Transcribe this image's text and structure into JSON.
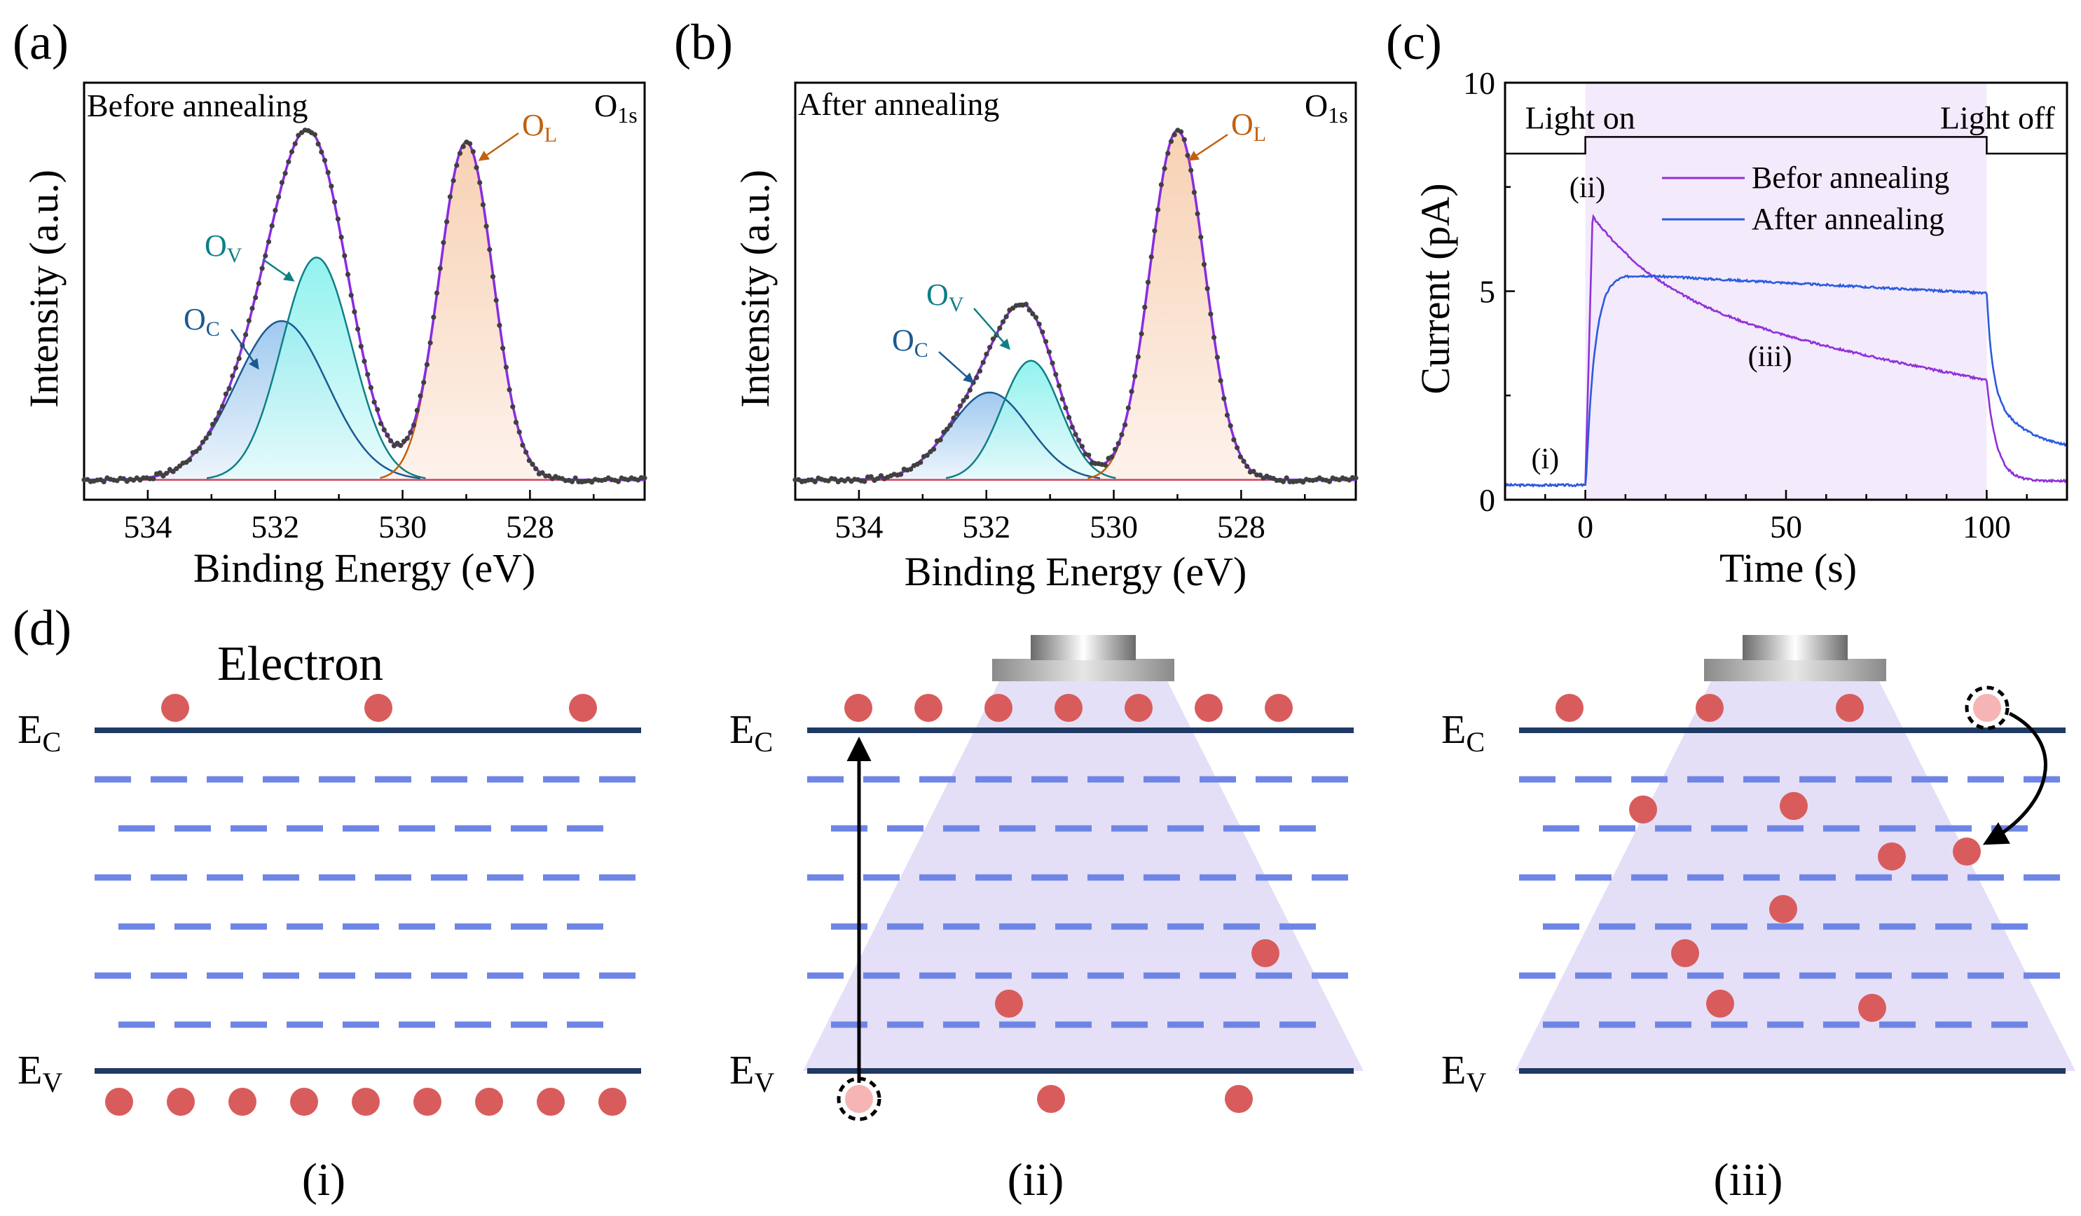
{
  "colors": {
    "envelope": "#8a2be2",
    "ol_fill": "#f7dcc8",
    "ol_line": "#c06010",
    "ov_fill": "#bff3f2",
    "ov_line": "#0e7f86",
    "oc_fill": "#bcd8f0",
    "oc_line": "#1a5a90",
    "baseline": "#d04060",
    "data_points": "#404040",
    "series_before": "#9030d8",
    "series_after": "#2a5ae0",
    "light_shade": "#f3eafc",
    "band_solid": "#1f3a63",
    "band_trap": "#6f85e6",
    "electron": "#d95c5c",
    "hole": "#f6b4b4",
    "cone": "#d8d0f0",
    "lamp": "#9a9a9a"
  },
  "panels": {
    "a": {
      "tag": "(a)"
    },
    "b": {
      "tag": "(b)"
    },
    "c": {
      "tag": "(c)"
    },
    "d": {
      "tag": "(d)"
    }
  },
  "chart_data": [
    {
      "id": "a",
      "type": "line",
      "title": "Before annealing",
      "corner_label": "O1s",
      "xlabel": "Binding Energy (eV)",
      "ylabel": "Intensity (a.u.)",
      "xlim": [
        535,
        526.2
      ],
      "ylim": [
        0,
        1.05
      ],
      "xticks": [
        534,
        532,
        530,
        528
      ],
      "baseline": 0.05,
      "components": [
        {
          "name": "OC",
          "label_main": "O",
          "label_sub": "C",
          "center": 531.9,
          "height": 0.4,
          "sigma": 0.72
        },
        {
          "name": "OV",
          "label_main": "O",
          "label_sub": "V",
          "center": 531.35,
          "height": 0.56,
          "sigma": 0.55
        },
        {
          "name": "OL",
          "label_main": "O",
          "label_sub": "L",
          "center": 529.0,
          "height": 0.85,
          "sigma": 0.42
        }
      ]
    },
    {
      "id": "b",
      "type": "line",
      "title": "After annealing",
      "corner_label": "O1s",
      "xlabel": "Binding Energy (eV)",
      "ylabel": "Intensity (a.u.)",
      "xlim": [
        535,
        526.2
      ],
      "ylim": [
        0,
        1.05
      ],
      "xticks": [
        534,
        532,
        530,
        528
      ],
      "baseline": 0.05,
      "components": [
        {
          "name": "OC",
          "label_main": "O",
          "label_sub": "C",
          "center": 531.95,
          "height": 0.22,
          "sigma": 0.62
        },
        {
          "name": "OV",
          "label_main": "O",
          "label_sub": "V",
          "center": 531.3,
          "height": 0.3,
          "sigma": 0.46
        },
        {
          "name": "OL",
          "label_main": "O",
          "label_sub": "L",
          "center": 529.0,
          "height": 0.88,
          "sigma": 0.43
        }
      ]
    },
    {
      "id": "c",
      "type": "line",
      "xlabel": "Time (s)",
      "ylabel": "Current (pA)",
      "xlim": [
        -20,
        120
      ],
      "ylim": [
        0,
        10
      ],
      "xticks": [
        0,
        50,
        100
      ],
      "yticks": [
        0,
        5,
        10
      ],
      "light_on_label": "Light on",
      "light_off_label": "Light off",
      "light_interval": [
        0,
        100
      ],
      "annotations": [
        {
          "label": "(i)",
          "x": -10,
          "y": 0.75
        },
        {
          "label": "(ii)",
          "x": 0.5,
          "y": 7.25
        },
        {
          "label": "(iii)",
          "x": 46,
          "y": 3.2
        }
      ],
      "series": [
        {
          "name": "Befor annealing",
          "dark": 0.35,
          "peak": 6.8,
          "end": 2.85,
          "off_end": 0.45
        },
        {
          "name": "After annealing",
          "dark": 0.35,
          "peak": 5.45,
          "end": 4.95,
          "off_end": 1.15
        }
      ]
    }
  ],
  "schematic": {
    "electron_label": "Electron",
    "ec_main": "E",
    "ec_sub": "C",
    "ev_main": "E",
    "ev_sub": "V",
    "subpanels": [
      {
        "tag": "(i)",
        "electrons_cb": 3,
        "trapped": 0,
        "electrons_vb": 9
      },
      {
        "tag": "(ii)",
        "electrons_cb": 7,
        "trapped": 2,
        "electrons_vb": 2,
        "holes": 1
      },
      {
        "tag": "(iii)",
        "electrons_cb": 3,
        "trapped": 8,
        "electrons_vb": 0,
        "holes": 1
      }
    ]
  }
}
